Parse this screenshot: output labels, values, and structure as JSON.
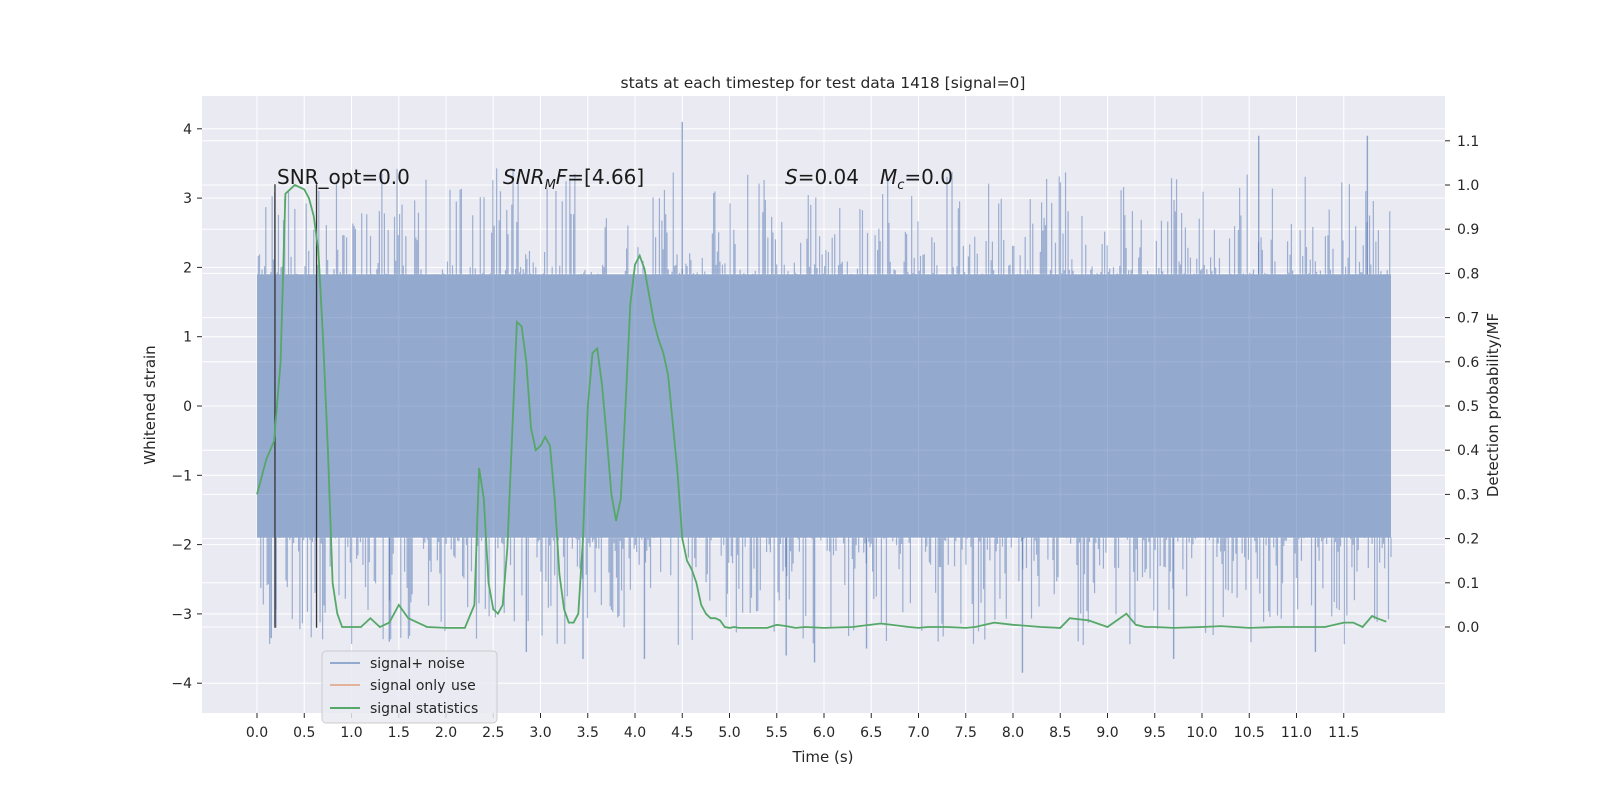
{
  "chart_data": {
    "type": "line",
    "title": "stats at each timestep for test data 1418 [signal=0]",
    "xlabel": "Time (s)",
    "ylabel": "Whitened strain",
    "ylabel_right": "Detection probability/MF",
    "xlim": [
      -0.5,
      12.65
    ],
    "ylim": [
      -4.45,
      4.45
    ],
    "ylim_right": [
      -0.2,
      1.2
    ],
    "x_ticks": [
      "0.0",
      "0.5",
      "1.0",
      "1.5",
      "2.0",
      "2.5",
      "3.0",
      "3.5",
      "4.0",
      "4.5",
      "5.0",
      "5.5",
      "6.0",
      "6.5",
      "7.0",
      "7.5",
      "8.0",
      "8.5",
      "9.0",
      "9.5",
      "10.0",
      "10.5",
      "11.0",
      "11.5"
    ],
    "y_ticks": [
      "4",
      "3",
      "2",
      "1",
      "0",
      "−1",
      "−2",
      "−3",
      "−4"
    ],
    "y_ticks_right": [
      "1.1",
      "1.0",
      "0.9",
      "0.8",
      "0.7",
      "0.6",
      "0.5",
      "0.4",
      "0.3",
      "0.2",
      "0.1",
      "0.0"
    ],
    "grid": true,
    "annotations": {
      "snr_opt": "SNR_opt=0.0",
      "snr_mf_prefix": "SNR",
      "snr_mf_sub": "M",
      "snr_mf_suffix": "F=[4.66]",
      "s_label": "S",
      "s_value": "=0.04",
      "mc_label": "M",
      "mc_sub": "c",
      "mc_value": "=0.0"
    },
    "marker_lines_x": [
      0.19,
      0.63
    ],
    "series": [
      {
        "name": "signal+ noise",
        "color": "#4c72b0",
        "kind": "noise",
        "x_range": [
          0.0,
          12.0
        ],
        "core_band": [
          -1.9,
          1.9
        ],
        "peaks": [
          {
            "x": 0.2,
            "y": -3.2
          },
          {
            "x": 0.15,
            "y": -3.35
          },
          {
            "x": 1.4,
            "y": -3.4
          },
          {
            "x": 2.85,
            "y": -3.55
          },
          {
            "x": 3.45,
            "y": -3.65
          },
          {
            "x": 4.1,
            "y": -3.65
          },
          {
            "x": 4.5,
            "y": 4.1
          },
          {
            "x": 5.6,
            "y": -3.6
          },
          {
            "x": 5.9,
            "y": -3.7
          },
          {
            "x": 8.1,
            "y": -3.85
          },
          {
            "x": 9.7,
            "y": -3.65
          },
          {
            "x": 11.75,
            "y": 3.9
          },
          {
            "x": 11.2,
            "y": -3.55
          },
          {
            "x": 10.6,
            "y": 3.9
          },
          {
            "x": 6.45,
            "y": -3.5
          }
        ]
      },
      {
        "name": "signal only",
        "color": "#dd8452",
        "kind": "legend-only"
      },
      {
        "name": "signal statistics",
        "color": "#55a868",
        "kind": "line",
        "axis": "right",
        "x": [
          0.0,
          0.1,
          0.18,
          0.25,
          0.3,
          0.4,
          0.5,
          0.55,
          0.6,
          0.65,
          0.7,
          0.75,
          0.8,
          0.85,
          0.9,
          1.0,
          1.1,
          1.2,
          1.25,
          1.3,
          1.4,
          1.5,
          1.6,
          1.7,
          1.8,
          2.0,
          2.2,
          2.3,
          2.35,
          2.4,
          2.45,
          2.5,
          2.55,
          2.6,
          2.65,
          2.75,
          2.8,
          2.85,
          2.9,
          2.95,
          3.0,
          3.05,
          3.1,
          3.15,
          3.2,
          3.25,
          3.3,
          3.35,
          3.4,
          3.45,
          3.5,
          3.55,
          3.6,
          3.65,
          3.7,
          3.75,
          3.8,
          3.85,
          3.9,
          3.95,
          4.0,
          4.05,
          4.1,
          4.15,
          4.2,
          4.25,
          4.3,
          4.35,
          4.4,
          4.45,
          4.5,
          4.55,
          4.6,
          4.65,
          4.7,
          4.75,
          4.8,
          4.85,
          4.9,
          4.95,
          5.0,
          5.05,
          5.1,
          5.2,
          5.3,
          5.4,
          5.5,
          5.6,
          5.7,
          5.8,
          6.0,
          6.3,
          6.6,
          6.9,
          7.0,
          7.1,
          7.3,
          7.5,
          7.6,
          7.8,
          8.0,
          8.3,
          8.5,
          8.6,
          8.8,
          9.0,
          9.1,
          9.2,
          9.3,
          9.4,
          9.5,
          9.7,
          10.0,
          10.2,
          10.5,
          10.8,
          11.0,
          11.3,
          11.5,
          11.6,
          11.7,
          11.8,
          11.85,
          11.95
        ],
        "y": [
          0.3,
          0.38,
          0.42,
          0.6,
          0.98,
          1.0,
          0.99,
          0.97,
          0.93,
          0.85,
          0.65,
          0.4,
          0.1,
          0.03,
          0.0,
          0.0,
          0.0,
          0.02,
          0.01,
          0.0,
          0.01,
          0.05,
          0.02,
          0.01,
          0.0,
          -0.002,
          -0.002,
          0.05,
          0.36,
          0.29,
          0.1,
          0.04,
          0.03,
          0.05,
          0.18,
          0.69,
          0.68,
          0.6,
          0.45,
          0.4,
          0.41,
          0.43,
          0.41,
          0.29,
          0.12,
          0.04,
          0.01,
          0.01,
          0.03,
          0.2,
          0.5,
          0.62,
          0.63,
          0.55,
          0.43,
          0.3,
          0.24,
          0.29,
          0.5,
          0.73,
          0.82,
          0.84,
          0.81,
          0.75,
          0.69,
          0.65,
          0.62,
          0.57,
          0.46,
          0.35,
          0.2,
          0.15,
          0.13,
          0.1,
          0.05,
          0.03,
          0.02,
          0.02,
          0.015,
          0.0,
          -0.002,
          0.0,
          -0.002,
          -0.002,
          -0.002,
          -0.002,
          0.005,
          0.002,
          -0.002,
          0.0,
          -0.002,
          0.0,
          0.008,
          0.0,
          -0.002,
          0.0,
          0.0,
          -0.002,
          0.0,
          0.01,
          0.005,
          0.0,
          -0.002,
          0.02,
          0.015,
          0.0,
          0.015,
          0.03,
          0.005,
          0.0,
          0.0,
          -0.002,
          0.0,
          0.002,
          -0.002,
          0.0,
          0.0,
          0.0,
          0.01,
          0.01,
          0.0,
          0.025,
          0.02,
          0.012
        ]
      }
    ],
    "legend": {
      "placement": "lower-left",
      "entries": [
        "signal+ noise",
        "signal only",
        "signal statistics"
      ],
      "ghost_text": "use"
    }
  }
}
